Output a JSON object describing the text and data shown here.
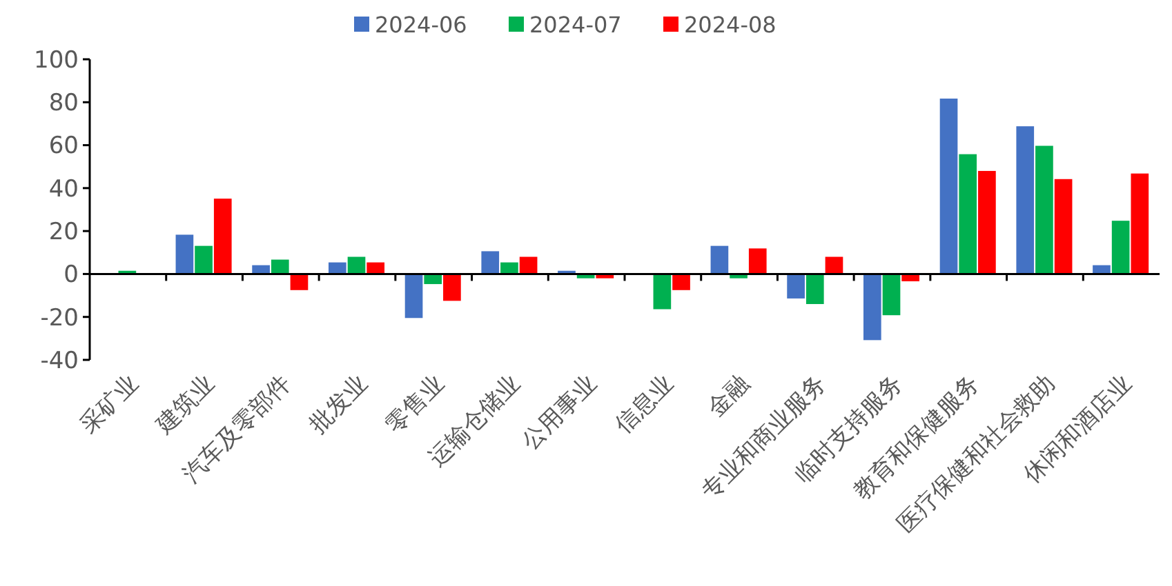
{
  "chart_data": {
    "type": "bar",
    "categories": [
      "采矿业",
      "建筑业",
      "汽车及零部件",
      "批发业",
      "零售业",
      "运输仓储业",
      "公用事业",
      "信息业",
      "金融",
      "专业和商业服务",
      "临时支持服务",
      "教育和保健服务",
      "医疗保健和社会救助",
      "休闲和酒店业"
    ],
    "series": [
      {
        "name": "2024-06",
        "color": "#4472c4",
        "values": [
          0,
          18.3,
          4.1,
          5.4,
          -20.5,
          10.6,
          1.5,
          0,
          13.1,
          -11.4,
          -30.8,
          81.7,
          68.8,
          4.1
        ]
      },
      {
        "name": "2024-07",
        "color": "#00b050",
        "values": [
          1.5,
          13.1,
          6.7,
          8,
          -4.7,
          5.4,
          -2,
          -16.4,
          -2,
          -14,
          -19.2,
          55.8,
          59.7,
          24.8
        ]
      },
      {
        "name": "2024-08",
        "color": "#ff0000",
        "values": [
          0,
          35.1,
          -7.5,
          5.4,
          -12.5,
          8,
          -2,
          -7.5,
          11.9,
          8,
          -3.4,
          48,
          44.2,
          46.8
        ]
      }
    ],
    "ylim": [
      -40,
      100
    ],
    "yticks": [
      -40,
      -20,
      0,
      20,
      40,
      60,
      80,
      100
    ],
    "legend": "top"
  }
}
